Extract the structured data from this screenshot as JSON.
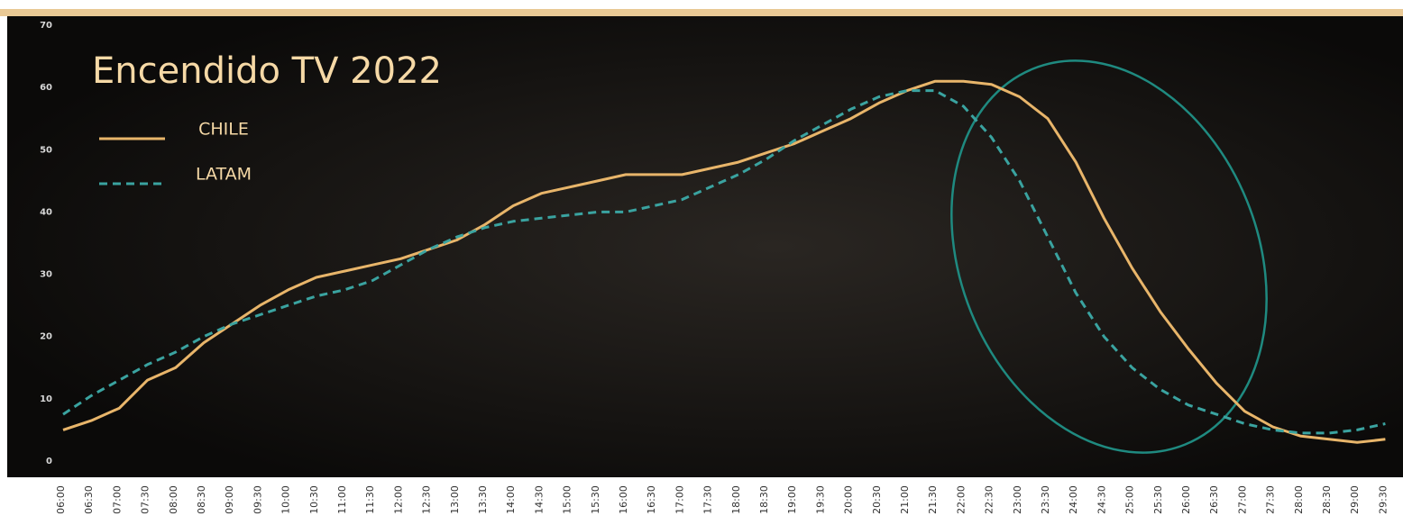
{
  "chart_data": {
    "type": "line",
    "title": "Encendido TV 2022",
    "categories": [
      "06:00",
      "06:30",
      "07:00",
      "07:30",
      "08:00",
      "08:30",
      "09:00",
      "09:30",
      "10:00",
      "10:30",
      "11:00",
      "11:30",
      "12:00",
      "12:30",
      "13:00",
      "13:30",
      "14:00",
      "14:30",
      "15:00",
      "15:30",
      "16:00",
      "16:30",
      "17:00",
      "17:30",
      "18:00",
      "18:30",
      "19:00",
      "19:30",
      "20:00",
      "20:30",
      "21:00",
      "21:30",
      "22:00",
      "22:30",
      "23:00",
      "23:30",
      "24:00",
      "24:30",
      "25:00",
      "25:30",
      "26:00",
      "26:30",
      "27:00",
      "27:30",
      "28:00",
      "28:30",
      "29:00",
      "29:30"
    ],
    "series": [
      {
        "name": "CHILE",
        "color": "#e8b56a",
        "dashed": false,
        "values": [
          5,
          6.5,
          8.5,
          13,
          15,
          19,
          22,
          25,
          27.5,
          29.5,
          30.5,
          31.5,
          32.5,
          34,
          35.5,
          38,
          41,
          43,
          44,
          45,
          46,
          46,
          46,
          47,
          48,
          49.5,
          51,
          53,
          55,
          57.5,
          59.5,
          61,
          61,
          60.5,
          58.5,
          55,
          48,
          39,
          31,
          24,
          18,
          12.5,
          8,
          5.5,
          4,
          3.5,
          3,
          3.5
        ]
      },
      {
        "name": "LATAM",
        "color": "#3aa3a0",
        "dashed": true,
        "values": [
          7.5,
          10.5,
          13,
          15.5,
          17.5,
          20,
          22,
          23.5,
          25,
          26.5,
          27.5,
          29,
          31.5,
          34,
          36,
          37.5,
          38.5,
          39,
          39.5,
          40,
          40,
          41,
          42,
          44,
          46,
          48.5,
          51.5,
          54,
          56.5,
          58.5,
          59.5,
          59.5,
          57,
          52,
          45,
          36,
          27,
          20,
          15,
          11.5,
          9,
          7.5,
          6,
          5,
          4.5,
          4.5,
          5,
          6
        ]
      }
    ],
    "ylim": [
      0,
      70
    ],
    "yticks": [
      0,
      10,
      20,
      30,
      40,
      50,
      60,
      70
    ],
    "grid": false
  }
}
